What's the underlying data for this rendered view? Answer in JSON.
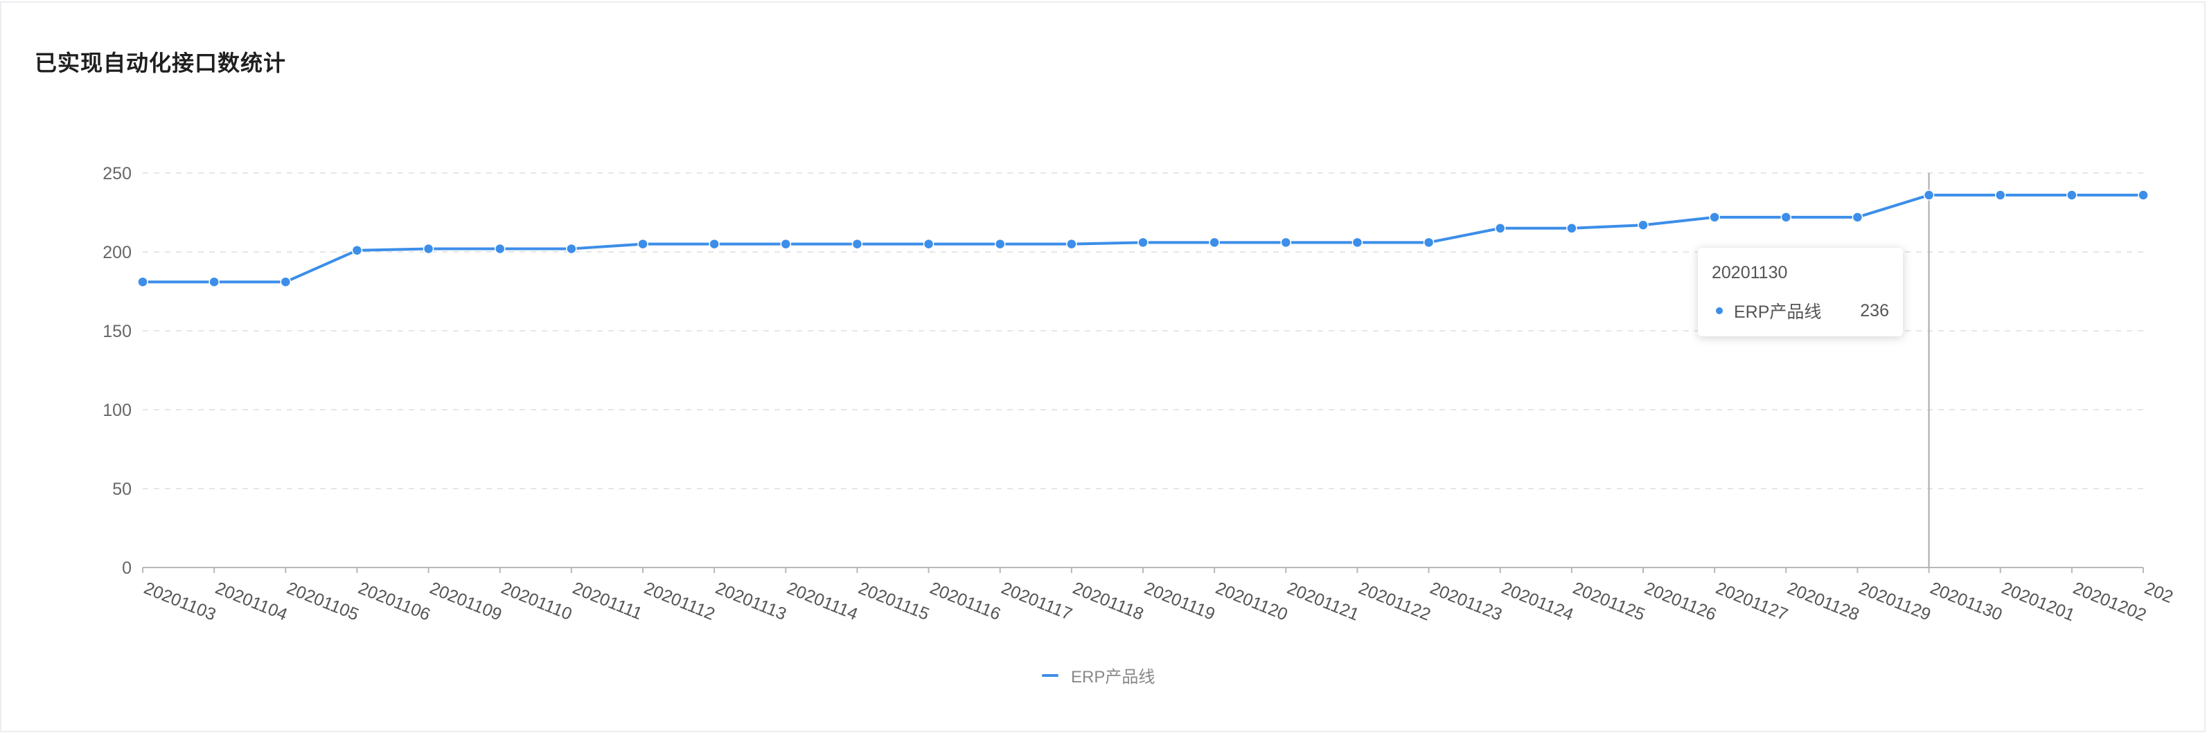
{
  "card": {
    "title": "已实现自动化接口数统计"
  },
  "colors": {
    "series": "#3c8ee9",
    "grid": "#e6e6e6",
    "axis": "#b8b8b8",
    "crosshair": "#aaaaaa"
  },
  "tooltip": {
    "title": "20201130",
    "series_name": "ERP产品线",
    "value": "236"
  },
  "legend": {
    "label": "ERP产品线"
  },
  "chart_data": {
    "type": "line",
    "title": "已实现自动化接口数统计",
    "xlabel": "",
    "ylabel": "",
    "ylim": [
      0,
      250
    ],
    "yticks": [
      0,
      50,
      100,
      150,
      200,
      250
    ],
    "grid": true,
    "legend_position": "bottom-center",
    "categories": [
      "20201103",
      "20201104",
      "20201105",
      "20201106",
      "20201109",
      "20201110",
      "20201111",
      "20201112",
      "20201113",
      "20201114",
      "20201115",
      "20201116",
      "20201117",
      "20201118",
      "20201119",
      "20201120",
      "20201121",
      "20201122",
      "20201123",
      "20201124",
      "20201125",
      "20201126",
      "20201127",
      "20201128",
      "20201129",
      "20201130",
      "20201201",
      "20201202",
      "202"
    ],
    "series": [
      {
        "name": "ERP产品线",
        "values": [
          181,
          181,
          181,
          201,
          202,
          202,
          202,
          205,
          205,
          205,
          205,
          205,
          205,
          205,
          206,
          206,
          206,
          206,
          206,
          215,
          215,
          217,
          222,
          222,
          222,
          236,
          236,
          236,
          236
        ]
      }
    ],
    "highlighted_category": "20201130"
  }
}
